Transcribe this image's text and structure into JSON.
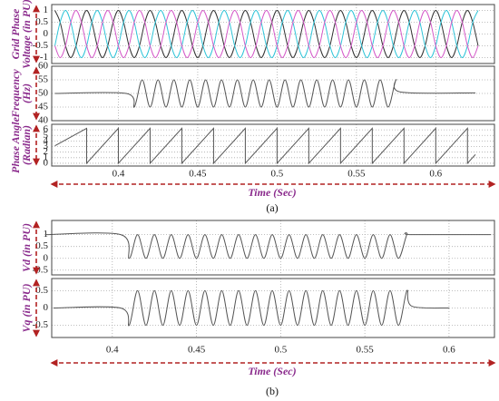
{
  "chart_data": [
    {
      "type": "line",
      "smooth": true,
      "ylabel": [
        "Grid Phase",
        "Voltage (in PU)"
      ],
      "xlim": [
        0.358,
        0.637
      ],
      "ylim": [
        -1.25,
        1.25
      ],
      "yticks": [
        -1,
        -0.5,
        0,
        0.5,
        1
      ],
      "xticks": [
        0.4,
        0.45,
        0.5,
        0.55,
        0.6
      ],
      "grid": true,
      "x": [
        0.36,
        0.3633,
        0.3667,
        0.37,
        0.3733,
        0.3767,
        0.38,
        0.3833,
        0.3867,
        0.39,
        0.3933,
        0.3967,
        0.4,
        0.4033,
        0.4067,
        0.41,
        0.4133,
        0.4167,
        0.42,
        0.4233,
        0.4267,
        0.43,
        0.4333,
        0.4367,
        0.44,
        0.4433,
        0.4467,
        0.45,
        0.4533,
        0.4567,
        0.46,
        0.4633,
        0.4667,
        0.47,
        0.4733,
        0.4767,
        0.48,
        0.4833,
        0.4867,
        0.49,
        0.4933,
        0.4967,
        0.5,
        0.5033,
        0.5067,
        0.51,
        0.5133,
        0.5167,
        0.52,
        0.5233,
        0.5267,
        0.53,
        0.5333,
        0.5367,
        0.54,
        0.5433,
        0.5467,
        0.55,
        0.5533,
        0.5567,
        0.56,
        0.5633,
        0.5667,
        0.57,
        0.5733,
        0.5767,
        0.58,
        0.5833,
        0.5867,
        0.59,
        0.5933,
        0.5967,
        0.6,
        0.6033,
        0.6067,
        0.61,
        0.6133,
        0.6167,
        0.62,
        0.6233,
        0.6267
      ],
      "series": [
        {
          "color": "#333333",
          "values": [
            1,
            0.5,
            -0.5,
            -1,
            -0.5,
            0.5,
            1,
            0.5,
            -0.5,
            -1,
            -0.5,
            0.5,
            1,
            0.5,
            -0.5,
            -1,
            -0.5,
            0.5,
            1,
            0.5,
            -0.5,
            -1,
            -0.5,
            0.5,
            1,
            0.5,
            -0.5,
            -1,
            -0.5,
            0.5,
            1,
            0.5,
            -0.5,
            -1,
            -0.5,
            0.5,
            1,
            0.5,
            -0.5,
            -1,
            -0.5,
            0.5,
            1,
            0.5,
            -0.5,
            -1,
            -0.5,
            0.5,
            1,
            0.5,
            -0.5,
            -1,
            -0.5,
            0.5,
            1,
            0.5,
            -0.5,
            -1,
            -0.5,
            0.5,
            1,
            0.5,
            -0.5,
            -1,
            -0.5,
            0.5,
            1,
            0.5,
            -0.5,
            -1,
            -0.5,
            0.5,
            1,
            0.5,
            -0.5,
            -1,
            -0.5,
            0.5,
            1,
            0.5,
            -0.5
          ]
        },
        {
          "color": "#2ec4d8",
          "values": [
            -0.5,
            0.5,
            1,
            0.5,
            -0.5,
            -1,
            -0.5,
            0.5,
            1,
            0.5,
            -0.5,
            -1,
            -0.5,
            0.5,
            1,
            0.5,
            -0.5,
            -1,
            -0.5,
            0.5,
            1,
            0.5,
            -0.5,
            -1,
            -0.5,
            0.5,
            1,
            0.5,
            -0.5,
            -1,
            -0.5,
            0.5,
            1,
            0.5,
            -0.5,
            -1,
            -0.5,
            0.5,
            1,
            0.5,
            -0.5,
            -1,
            -0.5,
            0.5,
            1,
            0.5,
            -0.5,
            -1,
            -0.5,
            0.5,
            1,
            0.5,
            -0.5,
            -1,
            -0.5,
            0.5,
            1,
            0.5,
            -0.5,
            -1,
            -0.5,
            0.5,
            1,
            0.5,
            -0.5,
            -1,
            -0.5,
            0.5,
            1,
            0.5,
            -0.5,
            -1,
            -0.5,
            0.5,
            1,
            0.5,
            -0.5,
            -1,
            -0.5,
            0.5,
            1
          ]
        },
        {
          "color": "#d458c8",
          "values": [
            -0.5,
            -1,
            -0.5,
            0.5,
            1,
            0.5,
            -0.5,
            -1,
            -0.5,
            0.5,
            1,
            0.5,
            -0.5,
            -1,
            -0.5,
            0.5,
            1,
            0.5,
            -0.5,
            -1,
            -0.5,
            0.5,
            1,
            0.5,
            -0.5,
            -1,
            -0.5,
            0.5,
            1,
            0.5,
            -0.5,
            -1,
            -0.5,
            0.5,
            1,
            0.5,
            -0.5,
            -1,
            -0.5,
            0.5,
            1,
            0.5,
            -0.5,
            -1,
            -0.5,
            0.5,
            1,
            0.5,
            -0.5,
            -1,
            -0.5,
            0.5,
            1,
            0.5,
            -0.5,
            -1,
            -0.5,
            0.5,
            1,
            0.5,
            -0.5,
            -1,
            -0.5,
            0.5,
            1,
            0.5,
            -0.5,
            -1,
            -0.5,
            0.5,
            1,
            0.5,
            -0.5,
            -1,
            -0.5,
            0.5,
            1,
            0.5,
            -0.5,
            -1,
            -0.5
          ]
        }
      ]
    },
    {
      "type": "line",
      "smooth": true,
      "ylabel": [
        "Frequency",
        "(Hz)"
      ],
      "xlim": [
        0.358,
        0.637
      ],
      "ylim": [
        40,
        60
      ],
      "yticks": [
        40,
        45,
        50,
        55,
        60
      ],
      "xticks": [
        0.4,
        0.45,
        0.5,
        0.55,
        0.6
      ],
      "grid": true,
      "x": [
        0.36,
        0.405,
        0.41,
        0.415,
        0.42,
        0.425,
        0.43,
        0.435,
        0.44,
        0.445,
        0.45,
        0.455,
        0.46,
        0.465,
        0.47,
        0.475,
        0.48,
        0.485,
        0.49,
        0.495,
        0.5,
        0.505,
        0.51,
        0.515,
        0.52,
        0.525,
        0.53,
        0.535,
        0.54,
        0.545,
        0.55,
        0.555,
        0.56,
        0.565,
        0.57,
        0.575,
        0.578,
        0.625
      ],
      "series": [
        {
          "color": "#555555",
          "values": [
            50,
            50,
            45,
            55,
            45,
            55,
            45,
            55,
            45,
            55,
            45,
            55,
            45,
            55,
            45,
            55,
            45,
            55,
            45,
            55,
            45,
            55,
            45,
            55,
            45,
            55,
            45,
            55,
            45,
            55,
            45,
            55,
            45,
            55,
            45,
            55,
            50.5,
            50.2
          ]
        }
      ]
    },
    {
      "type": "line",
      "smooth": false,
      "ylabel": [
        "Phase Angle",
        "(Radian)"
      ],
      "xlim": [
        0.358,
        0.637
      ],
      "ylim": [
        -0.5,
        7
      ],
      "yticks": [
        0,
        1,
        2,
        3,
        4,
        5,
        6
      ],
      "xticks": [
        0.4,
        0.45,
        0.5,
        0.55,
        0.6
      ],
      "grid": true,
      "xlabel": "Time (Sec)",
      "caption": "(a)",
      "x": [
        0.36,
        0.38,
        0.38,
        0.4,
        0.4,
        0.42,
        0.42,
        0.44,
        0.44,
        0.46,
        0.46,
        0.48,
        0.48,
        0.5,
        0.5,
        0.52,
        0.52,
        0.54,
        0.54,
        0.56,
        0.56,
        0.58,
        0.58,
        0.6,
        0.6,
        0.62,
        0.62,
        0.625
      ],
      "series": [
        {
          "color": "#555555",
          "values": [
            3.14,
            6.28,
            0,
            6.28,
            0,
            6.28,
            0,
            6.28,
            0,
            6.28,
            0,
            6.28,
            0,
            6.28,
            0,
            6.28,
            0,
            6.28,
            0,
            6.28,
            0,
            6.28,
            0,
            6.28,
            0,
            6.28,
            0,
            1.57
          ]
        }
      ]
    },
    {
      "type": "line",
      "smooth": true,
      "ylabel": [
        "Vd (in PU)"
      ],
      "xlim": [
        0.364,
        0.627
      ],
      "ylim": [
        -0.7,
        1.6
      ],
      "yticks": [
        -0.5,
        0,
        0.5,
        1
      ],
      "xticks": [
        0.4,
        0.45,
        0.5,
        0.55,
        0.6
      ],
      "grid": true,
      "x": [
        0.36,
        0.405,
        0.41,
        0.415,
        0.42,
        0.425,
        0.43,
        0.435,
        0.44,
        0.445,
        0.45,
        0.455,
        0.46,
        0.465,
        0.47,
        0.475,
        0.48,
        0.485,
        0.49,
        0.495,
        0.5,
        0.505,
        0.51,
        0.515,
        0.52,
        0.525,
        0.53,
        0.535,
        0.54,
        0.545,
        0.55,
        0.555,
        0.56,
        0.565,
        0.57,
        0.575,
        0.578,
        0.625
      ],
      "series": [
        {
          "color": "#555555",
          "values": [
            1,
            1,
            0,
            1,
            0,
            1,
            0,
            1,
            0,
            1,
            0,
            1,
            0,
            1,
            0,
            1,
            0,
            1,
            0,
            1,
            0,
            1,
            0,
            1,
            0,
            1,
            0,
            1,
            0,
            1,
            0,
            1,
            0,
            1,
            0,
            1,
            1,
            1
          ]
        }
      ]
    },
    {
      "type": "line",
      "smooth": true,
      "ylabel": [
        "Vq (in PU)"
      ],
      "xlim": [
        0.364,
        0.627
      ],
      "ylim": [
        -0.85,
        0.85
      ],
      "yticks": [
        -0.5,
        0,
        0.5
      ],
      "xticks": [
        0.4,
        0.45,
        0.5,
        0.55,
        0.6
      ],
      "grid": true,
      "xlabel": "Time (Sec)",
      "caption": "(b)",
      "x": [
        0.365,
        0.405,
        0.41,
        0.415,
        0.42,
        0.425,
        0.43,
        0.435,
        0.44,
        0.445,
        0.45,
        0.455,
        0.46,
        0.465,
        0.47,
        0.475,
        0.48,
        0.485,
        0.49,
        0.495,
        0.5,
        0.505,
        0.51,
        0.515,
        0.52,
        0.525,
        0.53,
        0.535,
        0.54,
        0.545,
        0.55,
        0.555,
        0.56,
        0.565,
        0.57,
        0.575,
        0.578,
        0.6
      ],
      "series": [
        {
          "color": "#555555",
          "values": [
            0,
            0,
            -0.5,
            0.5,
            -0.5,
            0.5,
            -0.5,
            0.5,
            -0.5,
            0.5,
            -0.5,
            0.5,
            -0.5,
            0.5,
            -0.5,
            0.5,
            -0.5,
            0.5,
            -0.5,
            0.5,
            -0.5,
            0.5,
            -0.5,
            0.5,
            -0.5,
            0.5,
            -0.5,
            0.5,
            -0.5,
            0.5,
            -0.5,
            0.5,
            -0.5,
            0.5,
            -0.5,
            0.5,
            0.05,
            0
          ]
        }
      ]
    }
  ]
}
